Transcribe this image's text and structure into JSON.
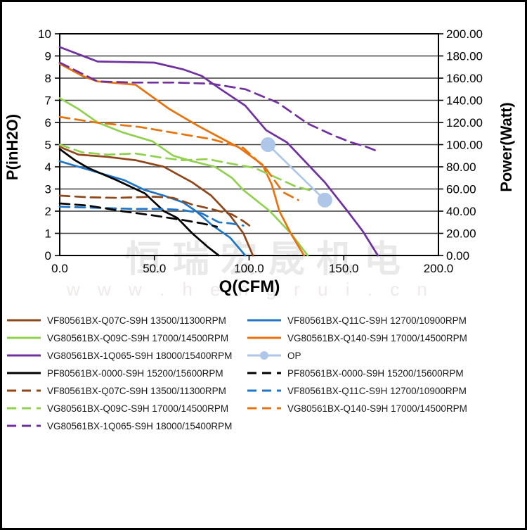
{
  "watermark": {
    "line1": "恒瑞宏晟机电",
    "line2": "w w w . h e n g r u i . c n"
  },
  "chart_data": {
    "type": "line",
    "xlabel": "Q(CFM)",
    "ylabel_left": "P(inH2O)",
    "ylabel_right": "Power(Watt)",
    "grid": "horizontal",
    "x_axis": {
      "min": 0,
      "max": 200,
      "tick_labels": [
        "0.0",
        "50.0",
        "100.0",
        "150.0",
        "200.0"
      ],
      "tick_values": [
        0,
        50,
        100,
        150,
        200
      ]
    },
    "y_left": {
      "min": 0,
      "max": 10,
      "tick_labels": [
        "0",
        "1",
        "2",
        "3",
        "4",
        "5",
        "6",
        "7",
        "8",
        "9",
        "10"
      ],
      "tick_values": [
        0,
        1,
        2,
        3,
        4,
        5,
        6,
        7,
        8,
        9,
        10
      ]
    },
    "y_right": {
      "min": 0,
      "max": 200,
      "tick_labels": [
        "0.00",
        "20.00",
        "40.00",
        "60.00",
        "80.00",
        "100.00",
        "120.00",
        "140.00",
        "160.00",
        "180.00",
        "200.00"
      ],
      "tick_values": [
        0,
        20,
        40,
        60,
        80,
        100,
        120,
        140,
        160,
        180,
        200
      ]
    },
    "colors": {
      "brown": "#8F471A",
      "blue": "#1F76C8",
      "green": "#92D050",
      "orange": "#E8720C",
      "purple": "#7030A0",
      "black": "#000000",
      "op_blue": "#AEC6E8"
    },
    "series": [
      {
        "name": "VF80561BX-Q07C-S9H 13500/11300RPM",
        "axis": "left",
        "color": "#8F471A",
        "dash": "solid",
        "points": [
          [
            0,
            4.9
          ],
          [
            10,
            4.55
          ],
          [
            25,
            4.45
          ],
          [
            40,
            4.3
          ],
          [
            55,
            4.0
          ],
          [
            70,
            3.3
          ],
          [
            80,
            2.7
          ],
          [
            90,
            1.8
          ],
          [
            97,
            1.0
          ],
          [
            102,
            0
          ]
        ]
      },
      {
        "name": "VF80561BX-Q11C-S9H 12700/10900RPM",
        "axis": "left",
        "color": "#1F76C8",
        "dash": "solid",
        "points": [
          [
            0,
            4.25
          ],
          [
            10,
            4.0
          ],
          [
            20,
            3.75
          ],
          [
            34,
            3.4
          ],
          [
            45,
            2.95
          ],
          [
            55,
            2.7
          ],
          [
            65,
            2.4
          ],
          [
            72,
            2.0
          ],
          [
            80,
            1.4
          ],
          [
            90,
            0.8
          ],
          [
            98,
            0
          ]
        ]
      },
      {
        "name": "VG80561BX-Q09C-S9H 17000/14500RPM",
        "axis": "left",
        "color": "#92D050",
        "dash": "solid",
        "points": [
          [
            0,
            7.1
          ],
          [
            10,
            6.6
          ],
          [
            20,
            6.0
          ],
          [
            33,
            5.56
          ],
          [
            49,
            5.15
          ],
          [
            60,
            4.5
          ],
          [
            70,
            4.25
          ],
          [
            82,
            4.0
          ],
          [
            91,
            3.5
          ],
          [
            97,
            2.95
          ],
          [
            111,
            2.0
          ],
          [
            122,
            1.0
          ],
          [
            131,
            0
          ]
        ]
      },
      {
        "name": "VG80561BX-Q140-S9H 17000/14500RPM",
        "axis": "left",
        "color": "#E8720C",
        "dash": "solid",
        "points": [
          [
            0,
            8.65
          ],
          [
            12,
            8.1
          ],
          [
            20,
            7.85
          ],
          [
            40,
            7.7
          ],
          [
            58,
            6.6
          ],
          [
            73,
            5.85
          ],
          [
            85,
            5.3
          ],
          [
            95,
            4.85
          ],
          [
            107,
            4.1
          ],
          [
            112,
            3.2
          ],
          [
            116,
            2.0
          ],
          [
            122,
            1.0
          ],
          [
            129,
            0
          ]
        ]
      },
      {
        "name": "VG80561BX-1Q065-S9H 18000/15400RPM",
        "axis": "left",
        "color": "#7030A0",
        "dash": "solid",
        "points": [
          [
            0,
            9.4
          ],
          [
            20,
            8.75
          ],
          [
            50,
            8.7
          ],
          [
            65,
            8.4
          ],
          [
            75,
            8.1
          ],
          [
            85,
            7.5
          ],
          [
            98,
            6.76
          ],
          [
            109,
            5.65
          ],
          [
            120,
            5.1
          ],
          [
            130,
            4.2
          ],
          [
            140,
            3.3
          ],
          [
            152,
            2.0
          ],
          [
            160,
            1.1
          ],
          [
            168,
            0
          ]
        ]
      },
      {
        "name": "PF80561BX-0000-S9H 15200/15600RPM",
        "axis": "left",
        "color": "#000000",
        "dash": "solid",
        "points": [
          [
            0,
            4.8
          ],
          [
            8,
            4.3
          ],
          [
            15,
            3.95
          ],
          [
            30,
            3.4
          ],
          [
            45,
            2.8
          ],
          [
            55,
            2.0
          ],
          [
            62,
            1.7
          ],
          [
            70,
            1.0
          ],
          [
            78,
            0.4
          ],
          [
            84,
            0
          ]
        ]
      },
      {
        "name": "VF80561BX-Q07C-S9H 13500/11300RPM",
        "axis": "right",
        "color": "#8F471A",
        "dash": "dashed",
        "points": [
          [
            0,
            54
          ],
          [
            15,
            52.5
          ],
          [
            30,
            52
          ],
          [
            50,
            53
          ],
          [
            60,
            52
          ],
          [
            70,
            46
          ],
          [
            80,
            42
          ],
          [
            91,
            37
          ],
          [
            97,
            31
          ],
          [
            101,
            26
          ]
        ]
      },
      {
        "name": "VF80561BX-Q11C-S9H 12700/10900RPM",
        "axis": "right",
        "color": "#1F76C8",
        "dash": "dashed",
        "points": [
          [
            0,
            44
          ],
          [
            20,
            43
          ],
          [
            40,
            42
          ],
          [
            55,
            42
          ],
          [
            65,
            41
          ],
          [
            75,
            38
          ],
          [
            84,
            30
          ],
          [
            90,
            29
          ],
          [
            97,
            27
          ]
        ]
      },
      {
        "name": "VG80561BX-Q09C-S9H 17000/14500RPM",
        "axis": "right",
        "color": "#92D050",
        "dash": "dashed",
        "points": [
          [
            0,
            100
          ],
          [
            12,
            93
          ],
          [
            25,
            91
          ],
          [
            40,
            92
          ],
          [
            55,
            88
          ],
          [
            65,
            86
          ],
          [
            78,
            87
          ],
          [
            90,
            83
          ],
          [
            103,
            79
          ],
          [
            116,
            69
          ],
          [
            125,
            62
          ],
          [
            132,
            59
          ]
        ]
      },
      {
        "name": "VG80561BX-Q140-S9H 17000/14500RPM",
        "axis": "right",
        "color": "#E8720C",
        "dash": "dashed",
        "points": [
          [
            0,
            125
          ],
          [
            19,
            120
          ],
          [
            42,
            116
          ],
          [
            66,
            109
          ],
          [
            80,
            105
          ],
          [
            97,
            97
          ],
          [
            109,
            78
          ],
          [
            118,
            57
          ],
          [
            126,
            50
          ]
        ]
      },
      {
        "name": "VG80561BX-1Q065-S9H 18000/15400RPM",
        "axis": "right",
        "color": "#7030A0",
        "dash": "dashed",
        "points": [
          [
            0,
            174
          ],
          [
            20,
            157
          ],
          [
            40,
            156
          ],
          [
            60,
            156
          ],
          [
            80,
            155
          ],
          [
            98,
            150
          ],
          [
            115,
            138
          ],
          [
            131,
            119
          ],
          [
            145,
            108
          ],
          [
            154,
            102
          ],
          [
            162,
            98
          ],
          [
            168,
            94
          ]
        ]
      },
      {
        "name": "PF80561BX-0000-S9H 15200/15600RPM",
        "axis": "right",
        "color": "#000000",
        "dash": "dashed",
        "points": [
          [
            0,
            47
          ],
          [
            15,
            45
          ],
          [
            33,
            40
          ],
          [
            50,
            36
          ],
          [
            65,
            32
          ],
          [
            75,
            29
          ],
          [
            83,
            26
          ]
        ]
      },
      {
        "name": "OP",
        "axis": "right",
        "color": "#AEC6E8",
        "dash": "solid",
        "marker": "circle",
        "points": [
          [
            110,
            100
          ],
          [
            140,
            50
          ]
        ]
      }
    ]
  },
  "legend": {
    "columns": [
      [
        {
          "label": "VF80561BX-Q07C-S9H 13500/11300RPM",
          "color": "#8F471A",
          "dash": "solid"
        },
        {
          "label": "VG80561BX-Q09C-S9H 17000/14500RPM",
          "color": "#92D050",
          "dash": "solid"
        },
        {
          "label": "VG80561BX-1Q065-S9H 18000/15400RPM",
          "color": "#7030A0",
          "dash": "solid"
        },
        {
          "label": "PF80561BX-0000-S9H 15200/15600RPM",
          "color": "#000000",
          "dash": "solid"
        },
        {
          "label": "VF80561BX-Q07C-S9H 13500/11300RPM",
          "color": "#8F471A",
          "dash": "dashed"
        },
        {
          "label": "VG80561BX-Q09C-S9H 17000/14500RPM",
          "color": "#92D050",
          "dash": "dashed"
        },
        {
          "label": "VG80561BX-1Q065-S9H 18000/15400RPM",
          "color": "#7030A0",
          "dash": "dashed"
        }
      ],
      [
        {
          "label": "VF80561BX-Q11C-S9H 12700/10900RPM",
          "color": "#1F76C8",
          "dash": "solid"
        },
        {
          "label": "VG80561BX-Q140-S9H 17000/14500RPM",
          "color": "#E8720C",
          "dash": "solid"
        },
        {
          "label": "OP",
          "color": "#AEC6E8",
          "dash": "solid",
          "marker": "circle"
        },
        {
          "label": "PF80561BX-0000-S9H 15200/15600RPM",
          "color": "#000000",
          "dash": "dashed"
        },
        {
          "label": "VF80561BX-Q11C-S9H 12700/10900RPM",
          "color": "#1F76C8",
          "dash": "dashed"
        },
        {
          "label": "VG80561BX-Q140-S9H 17000/14500RPM",
          "color": "#E8720C",
          "dash": "dashed"
        }
      ]
    ]
  }
}
